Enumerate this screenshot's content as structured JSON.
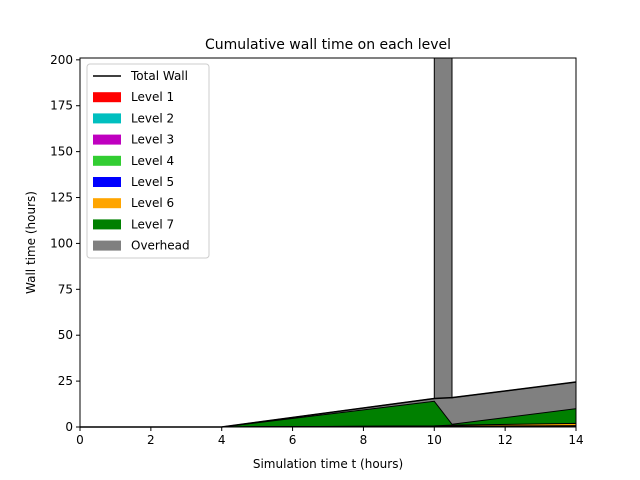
{
  "chart_data": {
    "type": "area",
    "title": "Cumulative wall time on each level",
    "xlabel": "Simulation time t (hours)",
    "ylabel": "Wall time (hours)",
    "xlim": [
      0,
      14
    ],
    "ylim": [
      0,
      201
    ],
    "xticks": [
      "0",
      "2",
      "4",
      "6",
      "8",
      "10",
      "12",
      "14"
    ],
    "yticks": [
      "0",
      "25",
      "50",
      "75",
      "100",
      "125",
      "150",
      "175",
      "200"
    ],
    "grid": false,
    "legend_position": "top-left",
    "total_wall": {
      "name": "Total Wall",
      "color": "#000000",
      "x": [
        0,
        4,
        10,
        10.5,
        14
      ],
      "y": [
        0,
        0,
        15.5,
        16,
        24.5
      ]
    },
    "series": [
      {
        "name": "Level 1",
        "color": "#ff0000",
        "x": [
          0,
          4,
          10,
          10.5,
          14
        ],
        "y": [
          0,
          0,
          0.3,
          0.3,
          0.5
        ]
      },
      {
        "name": "Level 2",
        "color": "#00bfbf",
        "x": [
          0,
          4,
          10,
          10.5,
          14
        ],
        "y": [
          0,
          0,
          0.3,
          0.3,
          0.5
        ]
      },
      {
        "name": "Level 3",
        "color": "#bf00bf",
        "x": [
          0,
          4,
          10,
          10.5,
          14
        ],
        "y": [
          0,
          0,
          0.4,
          0.4,
          0.6
        ]
      },
      {
        "name": "Level 4",
        "color": "#32cd32",
        "x": [
          0,
          4,
          10,
          10.5,
          14
        ],
        "y": [
          0,
          0,
          0.4,
          0.4,
          0.6
        ]
      },
      {
        "name": "Level 5",
        "color": "#0000ff",
        "x": [
          0,
          4,
          10,
          10.5,
          14
        ],
        "y": [
          0,
          0,
          0.5,
          0.5,
          0.7
        ]
      },
      {
        "name": "Level 6",
        "color": "#ffa500",
        "x": [
          0,
          4,
          10,
          10.5,
          14
        ],
        "y": [
          0,
          0,
          0.6,
          1.0,
          2.0
        ]
      },
      {
        "name": "Level 7",
        "color": "#008000",
        "x": [
          0,
          4,
          10,
          10.5,
          14
        ],
        "y": [
          0,
          0,
          14.0,
          1.5,
          10.0
        ]
      },
      {
        "name": "Overhead",
        "color": "#808080",
        "x": [
          0,
          4,
          10,
          10,
          10.5,
          10.5,
          14
        ],
        "y": [
          0,
          0,
          15.5,
          201,
          201,
          16,
          24.5
        ]
      }
    ]
  }
}
